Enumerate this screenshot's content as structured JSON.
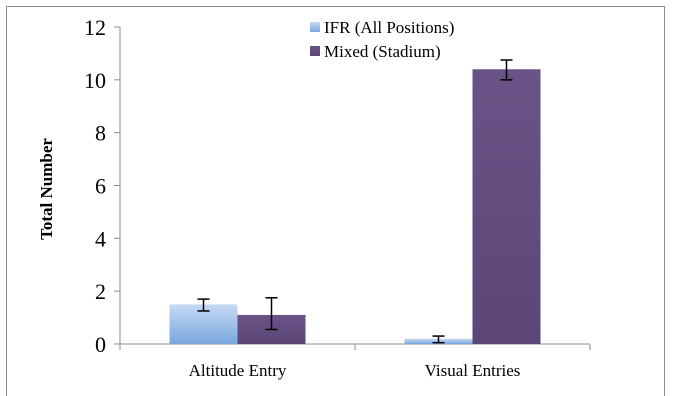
{
  "chart_data": {
    "type": "bar",
    "categories": [
      "Altitude Entry",
      "Visual Entries"
    ],
    "series": [
      {
        "name": "IFR (All Positions)",
        "color": "#8db4e2",
        "values": [
          1.5,
          0.2
        ],
        "error": [
          [
            1.25,
            1.7
          ],
          [
            0.05,
            0.3
          ]
        ]
      },
      {
        "name": "Mixed (Stadium)",
        "color": "#604a7b",
        "values": [
          1.1,
          10.4
        ],
        "error": [
          [
            0.55,
            1.75
          ],
          [
            10.0,
            10.75
          ]
        ]
      }
    ],
    "ylabel": "Total Number",
    "xlabel": "",
    "ylim": [
      0,
      12
    ],
    "yticks": [
      0,
      2,
      4,
      6,
      8,
      10,
      12
    ],
    "legend_position": "top-right",
    "grid": false
  }
}
